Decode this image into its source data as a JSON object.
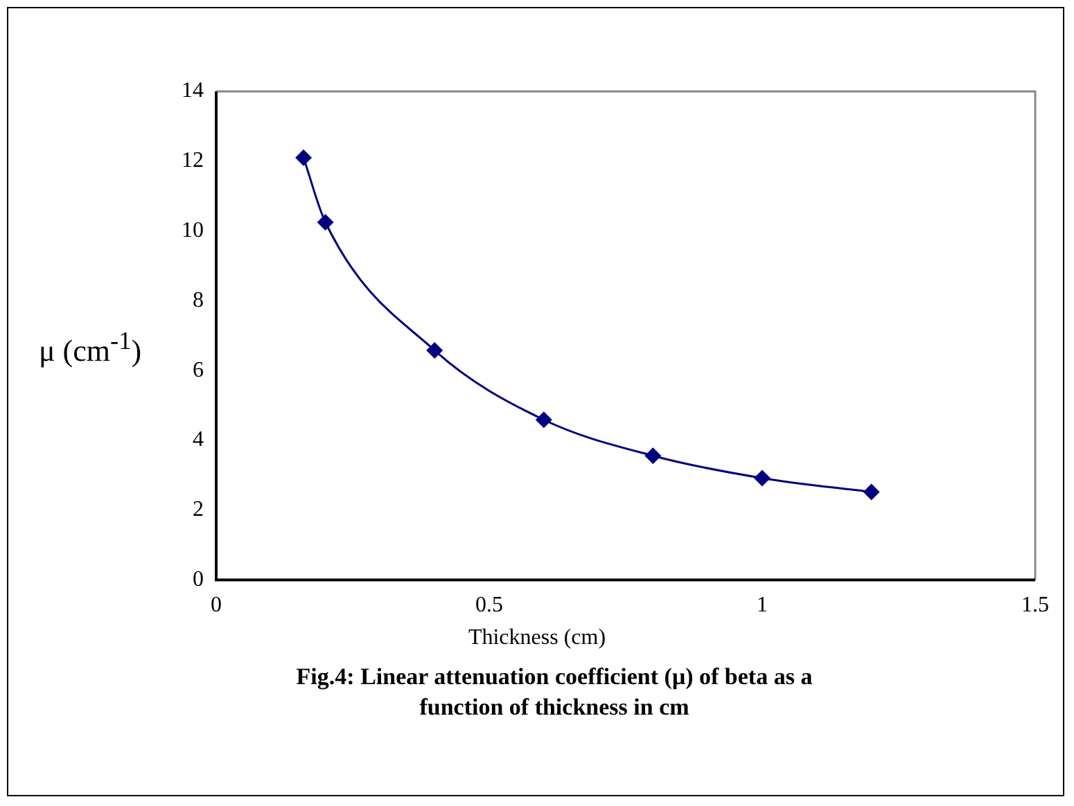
{
  "chart_data": {
    "type": "line",
    "title": "Fig.4: Linear attenuation coefficient (μ) of beta as a function of thickness in cm",
    "xlabel": "Thickness (cm)",
    "ylabel": "μ (cm$^{-1}$)",
    "x": [
      0.16,
      0.2,
      0.4,
      0.6,
      0.8,
      1.0,
      1.2
    ],
    "series": [
      {
        "color": "#000080",
        "values": [
          12.1,
          10.25,
          6.58,
          4.59,
          3.56,
          2.92,
          2.52
        ]
      }
    ],
    "xlim": [
      0,
      1.5
    ],
    "xticks": [
      0,
      0.5,
      1,
      1.5
    ],
    "ylim": [
      0,
      14
    ],
    "yticks": [
      0,
      2,
      4,
      6,
      8,
      10,
      12,
      14
    ],
    "grid": false,
    "legend": false,
    "marker": "diamond",
    "line_style": "solid"
  }
}
